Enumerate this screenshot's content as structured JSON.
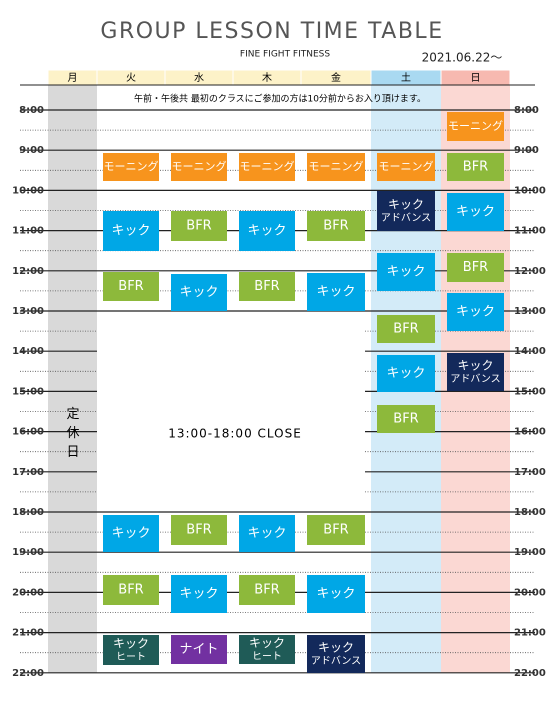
{
  "header": {
    "title": "GROUP LESSON TIME TABLE",
    "subtitle": "FINE FIGHT FITNESS",
    "date": "2021.06.22〜"
  },
  "days": [
    "月",
    "火",
    "水",
    "木",
    "金",
    "土",
    "日"
  ],
  "times": [
    "8:00",
    "9:00",
    "10:00",
    "11:00",
    "12:00",
    "13:00",
    "14:00",
    "15:00",
    "16:00",
    "17:00",
    "18:00",
    "19:00",
    "20:00",
    "21:00",
    "22:00"
  ],
  "notice": "午前・午後共 最初のクラスにご参加の方は10分前からお入り頂けます。",
  "closed_day": "定休日",
  "close_notice": "13:00-18:00 CLOSE",
  "schedule": [
    [
      [
        "モーニング"
      ],
      [
        "キック"
      ],
      [
        "BFR"
      ],
      [
        "キック"
      ],
      [
        "BFR"
      ],
      [
        "キック",
        "ヒート"
      ]
    ],
    [
      [
        "モーニング"
      ],
      [
        "BFR"
      ],
      [
        "キック"
      ],
      [
        "BFR"
      ],
      [
        "キック"
      ],
      [
        "ナイト"
      ]
    ],
    [
      [
        "モーニング"
      ],
      [
        "キック"
      ],
      [
        "BFR"
      ],
      [
        "キック"
      ],
      [
        "BFR"
      ],
      [
        "キック",
        "ヒート"
      ]
    ],
    [
      [
        "モーニング"
      ],
      [
        "BFR"
      ],
      [
        "キック"
      ],
      [
        "BFR"
      ],
      [
        "キック"
      ],
      [
        "キック",
        "アドバンス"
      ]
    ],
    [
      [
        "モーニング"
      ],
      [
        "キック",
        "アドバンス"
      ],
      [
        "キック"
      ],
      [
        "BFR"
      ],
      [
        "キック"
      ],
      [
        "BFR"
      ]
    ],
    [
      [
        "モーニング"
      ],
      [
        "BFR"
      ],
      [
        "キック"
      ],
      [
        "BFR"
      ],
      [
        "キック"
      ],
      [
        "キック",
        "アドバンス"
      ]
    ]
  ]
}
